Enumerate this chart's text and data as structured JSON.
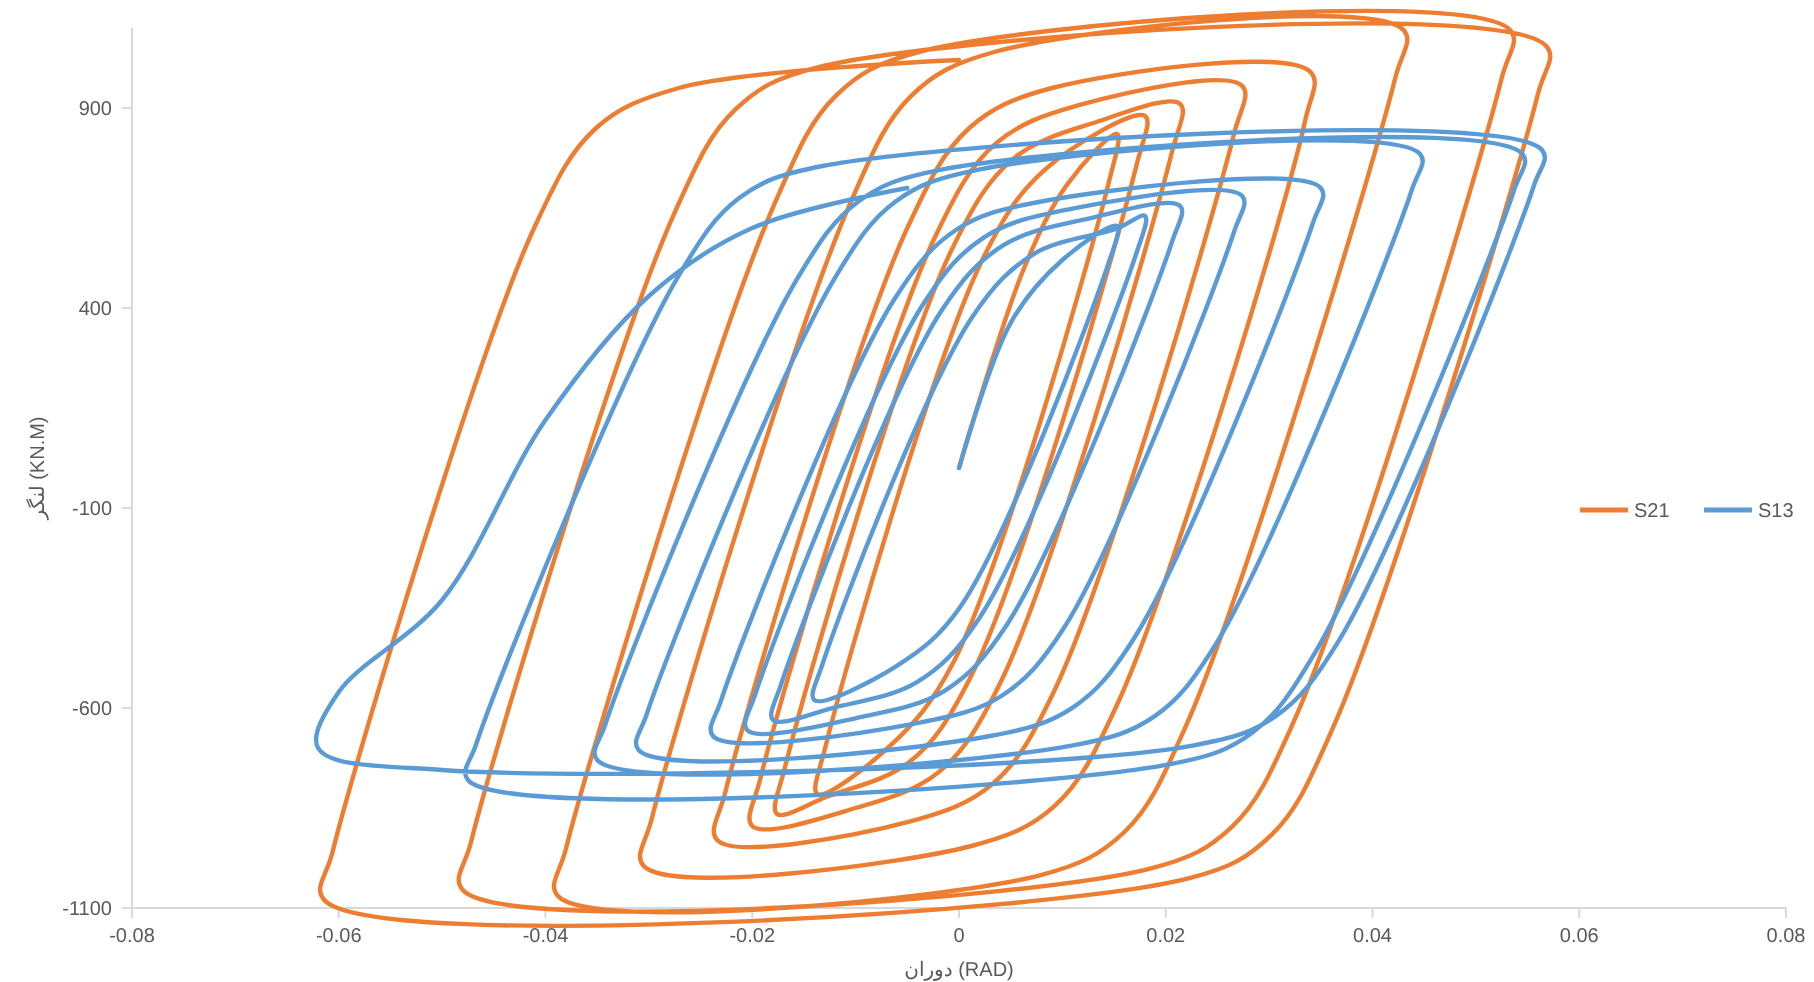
{
  "chart_data": {
    "type": "line",
    "xlabel": "دوران (RAD)",
    "ylabel": "لنگر (KN.M)",
    "xlim": [
      -0.08,
      0.08
    ],
    "xticks": [
      -0.08,
      -0.06,
      -0.04,
      -0.02,
      0,
      0.02,
      0.04,
      0.06,
      0.08
    ],
    "ylim": [
      -1100,
      1100
    ],
    "yticks": [
      -1100,
      -600,
      -100,
      400,
      900
    ],
    "grid": false,
    "legend": "right",
    "marker": "none",
    "line_style": "solid",
    "series": [
      {
        "name": "S21",
        "color": "#ed7d31",
        "x": [
          0,
          0.0063,
          0.0105,
          0.0153,
          0.0145,
          -0.0006,
          -0.0066,
          -0.0137,
          -0.0129,
          0.0024,
          0.0084,
          0.018,
          0.0172,
          0.0012,
          -0.0048,
          -0.0128,
          -0.0176,
          -0.0168,
          -0.0007,
          0.0053,
          0.0133,
          0.0214,
          0.0206,
          0.004,
          -0.002,
          -0.01,
          -0.02,
          -0.0192,
          -0.0024,
          0.0036,
          0.0116,
          0.0274,
          0.0266,
          0.0092,
          0.0032,
          -0.0048,
          -0.0234,
          -0.0226,
          -0.005,
          0.001,
          0.009,
          0.034,
          0.0335,
          0.0152,
          0.0092,
          0.0012,
          -0.0305,
          -0.0297,
          -0.0106,
          -0.0046,
          0.0034,
          0.043,
          0.0422,
          0.022,
          0.016,
          0.008,
          -0.0388,
          -0.038,
          -0.0179,
          -0.0119,
          -0.0039,
          0.0533,
          0.0525,
          0.0324,
          0.0264,
          0.0184,
          -0.048,
          -0.0472,
          -0.0276,
          -0.0216,
          -0.0136,
          0.0568,
          0.056,
          0.0362,
          0.0302,
          0.0222,
          -0.0614,
          -0.0606,
          -0.0411,
          -0.0351,
          -0.0271,
          0
        ],
        "values": [
          0,
          500,
          710,
          835,
          715,
          -489,
          -693,
          -815,
          -695,
          528,
          748,
          880,
          760,
          -519,
          -735,
          -822,
          -865,
          -745,
          546,
          774,
          865,
          910,
          790,
          -537,
          -761,
          -850,
          -895,
          -775,
          573,
          812,
          907,
          955,
          835,
          -558,
          -791,
          -884,
          -930,
          -810,
          600,
          850,
          950,
          990,
          870,
          -597,
          -846,
          -945,
          -995,
          -875,
          657,
          931,
          1040,
          1095,
          975,
          -642,
          -910,
          -1017,
          -1070,
          -950,
          657,
          931,
          1040,
          1095,
          975,
          -633,
          -897,
          -1002,
          -1055,
          -935,
          633,
          897,
          1002,
          1055,
          935,
          -648,
          -918,
          -1026,
          -1080,
          -960,
          600,
          850,
          950,
          1020
        ]
      },
      {
        "name": "S13",
        "color": "#5b9bd5",
        "x": [
          0,
          0.005,
          0.01,
          0.0153,
          0.0145,
          0.0001,
          -0.0059,
          -0.014,
          -0.0132,
          0.0013,
          0.0073,
          0.0153,
          0.018,
          0.0172,
          0.0019,
          -0.0041,
          -0.0121,
          -0.018,
          -0.0172,
          -0.0017,
          0.0043,
          0.0123,
          0.0214,
          0.0206,
          0.0046,
          -0.0014,
          -0.0094,
          -0.0205,
          -0.0197,
          -0.0035,
          0.0025,
          0.0105,
          0.0274,
          0.0266,
          0.0101,
          0.0041,
          -0.0039,
          -0.0238,
          -0.023,
          -0.0063,
          -0.0003,
          0.0077,
          0.035,
          0.0342,
          0.017,
          0.011,
          0.003,
          -0.031,
          -0.0302,
          -0.0121,
          -0.0061,
          0.0019,
          0.0446,
          0.0438,
          0.0249,
          0.0189,
          0.0109,
          -0.035,
          -0.0342,
          -0.0157,
          -0.0097,
          -0.0017,
          0.0545,
          0.0537,
          0.0343,
          0.0283,
          0.0203,
          -0.0475,
          -0.0467,
          -0.0272,
          -0.0212,
          -0.0132,
          0.0564,
          0.0556,
          0.0366,
          0.0306,
          0.0226,
          -0.05,
          -0.062,
          -0.06,
          -0.05,
          -0.04,
          -0.03,
          -0.02,
          -0.005
        ],
        "values": [
          0,
          363,
          520,
          605,
          515,
          -348,
          -493,
          -580,
          -490,
          378,
          536,
          599,
          630,
          540,
          -378,
          -536,
          -599,
          -630,
          -540,
          393,
          557,
          622,
          655,
          565,
          -393,
          -557,
          -622,
          -655,
          -565,
          408,
          578,
          646,
          680,
          590,
          -402,
          -570,
          -637,
          -670,
          -580,
          420,
          595,
          665,
          700,
          610,
          -423,
          -599,
          -670,
          -705,
          -615,
          471,
          667,
          746,
          785,
          695,
          -438,
          -621,
          -694,
          -730,
          -640,
          471,
          667,
          746,
          785,
          695,
          -468,
          -663,
          -741,
          -780,
          -690,
          477,
          676,
          755,
          795,
          705,
          -438,
          -621,
          -694,
          -755,
          -700,
          -560,
          -330,
          120,
          430,
          600,
          700
        ]
      }
    ]
  }
}
